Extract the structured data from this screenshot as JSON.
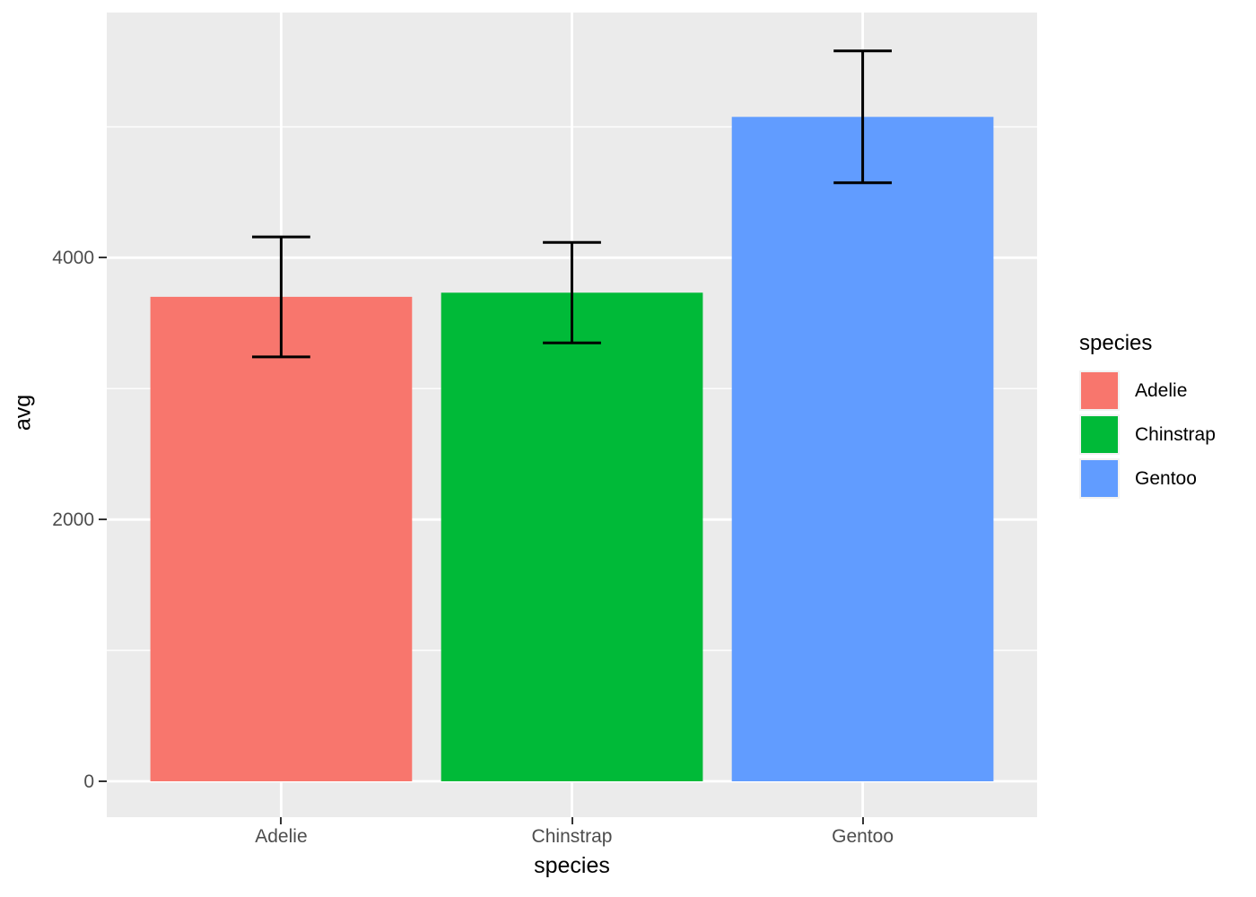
{
  "figure": {
    "background": "#FFFFFF",
    "panel_background": "#EBEBEB",
    "grid_color": "#FFFFFF",
    "tick_mark_color": "#333333",
    "tick_label_color": "#4D4D4D",
    "axis_title_color": "#000000",
    "errorbar_color": "#000000"
  },
  "chart_data": {
    "type": "bar",
    "title": "",
    "xlabel": "species",
    "ylabel": "avg",
    "categories": [
      "Adelie",
      "Chinstrap",
      "Gentoo"
    ],
    "values": [
      3701,
      3733,
      5076
    ],
    "error_low": [
      3242,
      3349,
      4572
    ],
    "error_high": [
      4159,
      4117,
      5580
    ],
    "colors": [
      "#F8766D",
      "#00BA38",
      "#619CFF"
    ],
    "y_major_ticks": [
      0,
      2000,
      4000
    ],
    "y_minor_ticks": [
      1000,
      3000,
      5000
    ],
    "ylim": [
      -274,
      5873
    ],
    "grid": true,
    "bar_width_fraction": 0.9,
    "errorbar_cap_fraction": 0.2,
    "legend": {
      "title": "species",
      "position": "right",
      "entries": [
        {
          "label": "Adelie",
          "color": "#F8766D"
        },
        {
          "label": "Chinstrap",
          "color": "#00BA38"
        },
        {
          "label": "Gentoo",
          "color": "#619CFF"
        }
      ]
    }
  }
}
